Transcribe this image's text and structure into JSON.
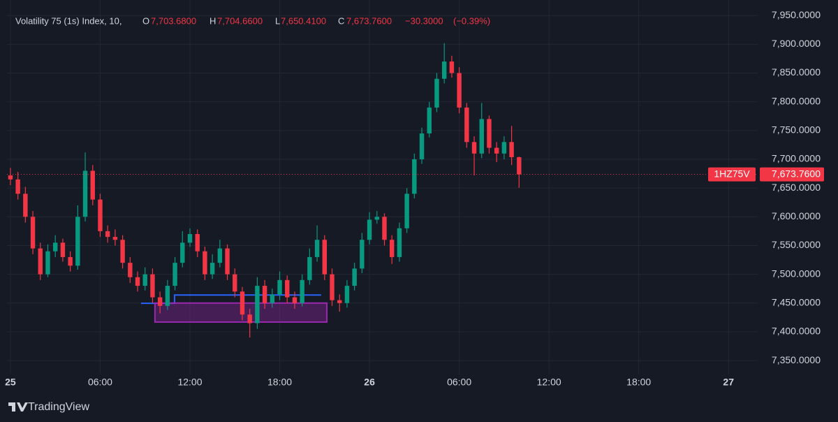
{
  "chart_data": {
    "type": "candlestick",
    "title": "Volatility 75 (1s) Index, 10,",
    "legend": [
      {
        "key": "O",
        "value": 7703.68,
        "label": "7,703.6800"
      },
      {
        "key": "H",
        "value": 7704.66,
        "label": "7,704.6600"
      },
      {
        "key": "L",
        "value": 7650.41,
        "label": "7,650.4100"
      },
      {
        "key": "C",
        "value": 7673.76,
        "label": "7,673.7600"
      }
    ],
    "change": {
      "value": -30.3,
      "label": "−30.3000"
    },
    "change_pct": {
      "value": -0.39,
      "label": "(−0.39%)"
    },
    "ticker": "1HZ75V",
    "last_price": {
      "value": 7673.76,
      "label": "7,673.7600"
    },
    "watermark": "TradingView",
    "up_color": "#089981",
    "down_color": "#f23645",
    "grid": true,
    "x": [
      0,
      0.5,
      1,
      1.5,
      2,
      2.5,
      3,
      3.5,
      4,
      4.5,
      5,
      5.5,
      6,
      6.5,
      7,
      7.5,
      8,
      8.5,
      9,
      9.5,
      10,
      10.5,
      11,
      11.5,
      12,
      12.5,
      13,
      13.5,
      14,
      14.5,
      15,
      15.5,
      16,
      16.5,
      17,
      17.5,
      18,
      18.5,
      19,
      19.5,
      20,
      20.5,
      21,
      21.5,
      22,
      22.5,
      23,
      23.5,
      24,
      24.5,
      25,
      25.5,
      26,
      26.5,
      27,
      27.5,
      28,
      28.5,
      29,
      29.5,
      30,
      30.5,
      31,
      31.5,
      32,
      32.5,
      33,
      33.5,
      34
    ],
    "open": [
      7672,
      7665,
      7640,
      7600,
      7545,
      7500,
      7540,
      7555,
      7530,
      7515,
      7600,
      7680,
      7630,
      7575,
      7565,
      7560,
      7520,
      7495,
      7480,
      7500,
      7460,
      7445,
      7480,
      7520,
      7555,
      7570,
      7540,
      7500,
      7520,
      7545,
      7500,
      7470,
      7430,
      7415,
      7480,
      7450,
      7465,
      7490,
      7460,
      7450,
      7490,
      7530,
      7560,
      7500,
      7455,
      7450,
      7480,
      7510,
      7560,
      7595,
      7600,
      7560,
      7530,
      7580,
      7640,
      7700,
      7745,
      7790,
      7840,
      7870,
      7850,
      7790,
      7730,
      7710,
      7770,
      7720,
      7710,
      7730,
      7703.68
    ],
    "high": [
      7685,
      7678,
      7652,
      7610,
      7555,
      7552,
      7568,
      7562,
      7540,
      7620,
      7712,
      7690,
      7640,
      7585,
      7578,
      7568,
      7530,
      7505,
      7512,
      7510,
      7470,
      7490,
      7530,
      7575,
      7580,
      7578,
      7548,
      7535,
      7560,
      7552,
      7510,
      7478,
      7440,
      7495,
      7490,
      7475,
      7505,
      7498,
      7470,
      7500,
      7545,
      7585,
      7568,
      7510,
      7465,
      7490,
      7520,
      7572,
      7608,
      7610,
      7606,
      7568,
      7590,
      7650,
      7710,
      7755,
      7800,
      7850,
      7902,
      7880,
      7860,
      7798,
      7740,
      7798,
      7776,
      7730,
      7740,
      7758,
      7704.66
    ],
    "low": [
      7655,
      7630,
      7590,
      7535,
      7490,
      7495,
      7530,
      7522,
      7505,
      7508,
      7592,
      7620,
      7565,
      7555,
      7550,
      7510,
      7485,
      7470,
      7472,
      7450,
      7432,
      7438,
      7472,
      7512,
      7548,
      7530,
      7490,
      7492,
      7512,
      7490,
      7460,
      7420,
      7390,
      7405,
      7440,
      7442,
      7455,
      7450,
      7440,
      7444,
      7482,
      7522,
      7490,
      7445,
      7435,
      7442,
      7472,
      7502,
      7552,
      7588,
      7550,
      7518,
      7522,
      7572,
      7632,
      7692,
      7738,
      7782,
      7832,
      7842,
      7780,
      7720,
      7672,
      7702,
      7710,
      7695,
      7700,
      7690,
      7650.41
    ],
    "close": [
      7665,
      7640,
      7600,
      7545,
      7500,
      7540,
      7555,
      7530,
      7515,
      7600,
      7680,
      7630,
      7575,
      7565,
      7560,
      7520,
      7495,
      7480,
      7500,
      7460,
      7445,
      7480,
      7520,
      7555,
      7570,
      7540,
      7500,
      7520,
      7545,
      7500,
      7470,
      7430,
      7415,
      7480,
      7450,
      7465,
      7490,
      7460,
      7450,
      7490,
      7530,
      7560,
      7500,
      7455,
      7450,
      7480,
      7510,
      7560,
      7595,
      7600,
      7560,
      7530,
      7580,
      7640,
      7700,
      7745,
      7790,
      7840,
      7870,
      7850,
      7790,
      7730,
      7710,
      7770,
      7720,
      7710,
      7730,
      7703.68,
      7673.76
    ],
    "xlim": [
      -0.23,
      49.95
    ],
    "ylim": [
      7327,
      7977
    ],
    "xticks": [
      {
        "value": 0,
        "label": "25"
      },
      {
        "value": 6,
        "label": "06:00"
      },
      {
        "value": 12,
        "label": "12:00"
      },
      {
        "value": 18,
        "label": "18:00"
      },
      {
        "value": 24,
        "label": "26"
      },
      {
        "value": 30,
        "label": "06:00"
      },
      {
        "value": 36,
        "label": "12:00"
      },
      {
        "value": 42,
        "label": "18:00"
      },
      {
        "value": 48,
        "label": "27"
      }
    ],
    "yticks": [
      {
        "value": 7350,
        "label": "7,350.0000"
      },
      {
        "value": 7400,
        "label": "7,400.0000"
      },
      {
        "value": 7450,
        "label": "7,450.0000"
      },
      {
        "value": 7500,
        "label": "7,500.0000"
      },
      {
        "value": 7550,
        "label": "7,550.0000"
      },
      {
        "value": 7600,
        "label": "7,600.0000"
      },
      {
        "value": 7650,
        "label": "7,650.0000"
      },
      {
        "value": 7700,
        "label": "7,700.0000"
      },
      {
        "value": 7750,
        "label": "7,750.0000"
      },
      {
        "value": 7800,
        "label": "7,800.0000"
      },
      {
        "value": 7850,
        "label": "7,850.0000"
      },
      {
        "value": 7900,
        "label": "7,900.0000"
      },
      {
        "value": 7950,
        "label": "7,950.0000"
      }
    ],
    "drawings": [
      {
        "type": "line",
        "color": "#2962ff",
        "x": [
          8.73,
          10.97,
          10.97,
          20.77
        ],
        "y": [
          7449.6,
          7449.6,
          7464,
          7464
        ]
      },
      {
        "type": "rectangle",
        "color": "#9c27b0",
        "x": [
          9.66,
          21.15
        ],
        "y": [
          7417,
          7450
        ]
      }
    ]
  }
}
